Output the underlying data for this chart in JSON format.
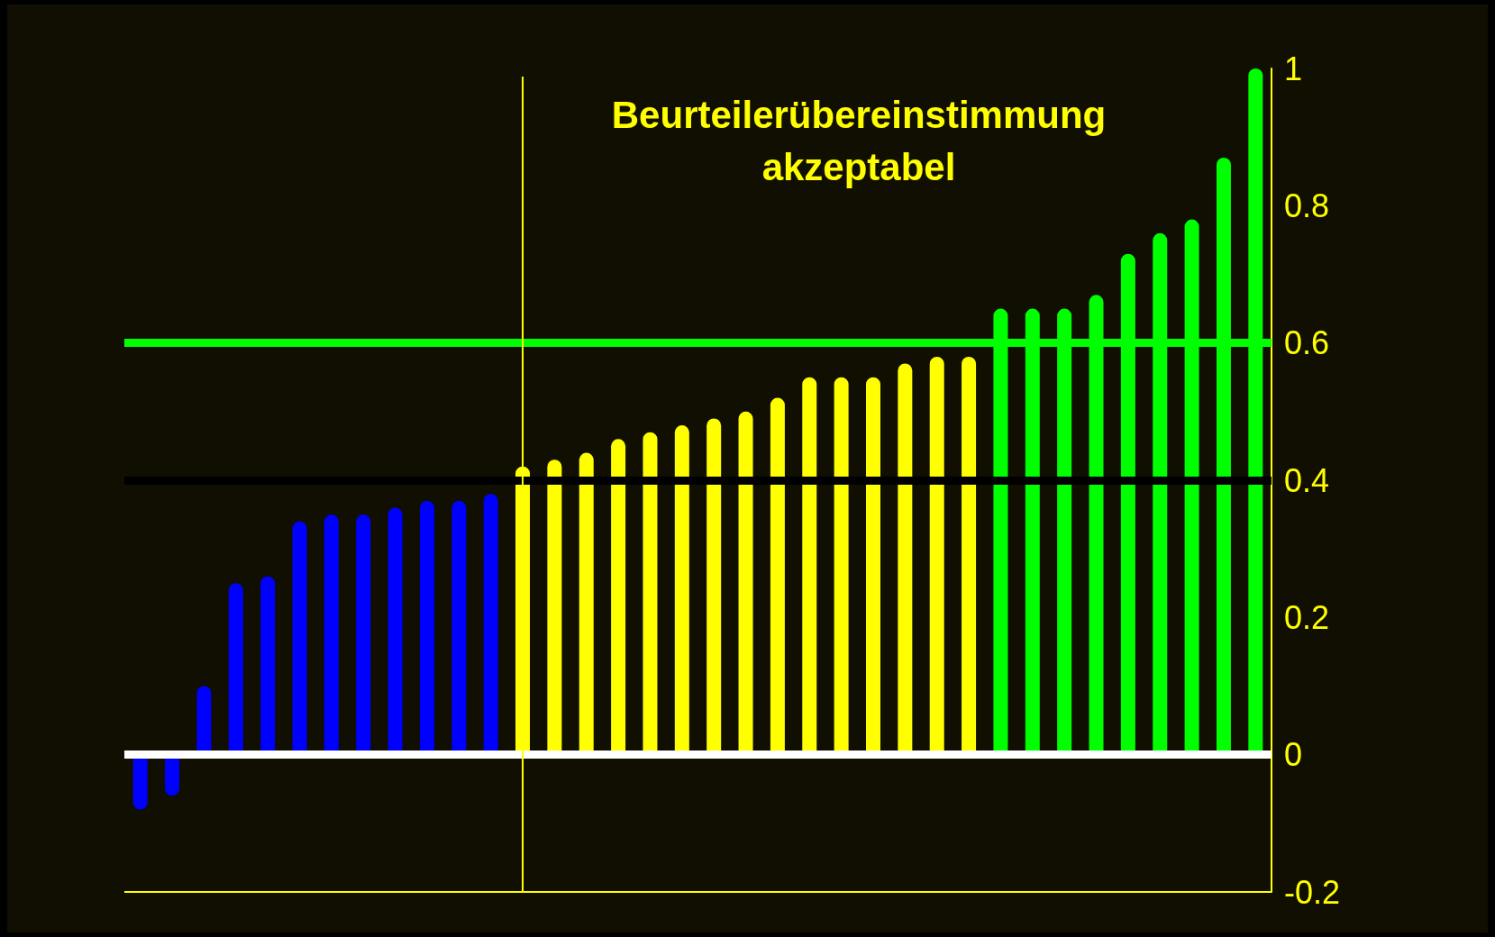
{
  "chart_data": {
    "type": "bar",
    "title": "Beurteilerübereinstimmung\nakzeptabel",
    "categories": [
      null,
      null,
      null,
      null,
      null,
      null,
      null,
      null,
      null,
      null,
      null,
      null,
      null,
      null,
      null,
      null,
      null,
      null,
      null,
      null,
      null,
      null,
      null,
      null,
      null,
      null,
      null,
      null,
      null,
      null,
      null,
      null,
      null,
      null,
      null,
      null
    ],
    "values": [
      -0.08,
      -0.06,
      0.1,
      0.25,
      0.26,
      0.34,
      0.35,
      0.35,
      0.36,
      0.37,
      0.37,
      0.38,
      0.42,
      0.43,
      0.44,
      0.46,
      0.47,
      0.48,
      0.49,
      0.5,
      0.52,
      0.55,
      0.55,
      0.55,
      0.57,
      0.58,
      0.58,
      0.65,
      0.65,
      0.65,
      0.67,
      0.73,
      0.76,
      0.78,
      0.87,
      1
    ],
    "colors": [
      "#0000ff",
      "#0000ff",
      "#0000ff",
      "#0000ff",
      "#0000ff",
      "#0000ff",
      "#0000ff",
      "#0000ff",
      "#0000ff",
      "#0000ff",
      "#0000ff",
      "#0000ff",
      "#ffff00",
      "#ffff00",
      "#ffff00",
      "#ffff00",
      "#ffff00",
      "#ffff00",
      "#ffff00",
      "#ffff00",
      "#ffff00",
      "#ffff00",
      "#ffff00",
      "#ffff00",
      "#ffff00",
      "#ffff00",
      "#ffff00",
      "#00ff00",
      "#00ff00",
      "#00ff00",
      "#00ff00",
      "#00ff00",
      "#00ff00",
      "#00ff00",
      "#00ff00",
      "#00ff00"
    ],
    "ylim": [
      -0.2,
      1
    ],
    "yticks": [
      -0.2,
      0,
      0.2,
      0.4,
      0.6,
      0.8,
      1
    ],
    "tick_labels": "y",
    "grid": false,
    "ref_lines": [
      {
        "axis": "y",
        "value": 0.6,
        "color": "#00ff00"
      },
      {
        "axis": "y",
        "value": 0.4,
        "color": "#000000"
      },
      {
        "axis": "y",
        "value": 0,
        "color": "#ffffff"
      }
    ]
  }
}
